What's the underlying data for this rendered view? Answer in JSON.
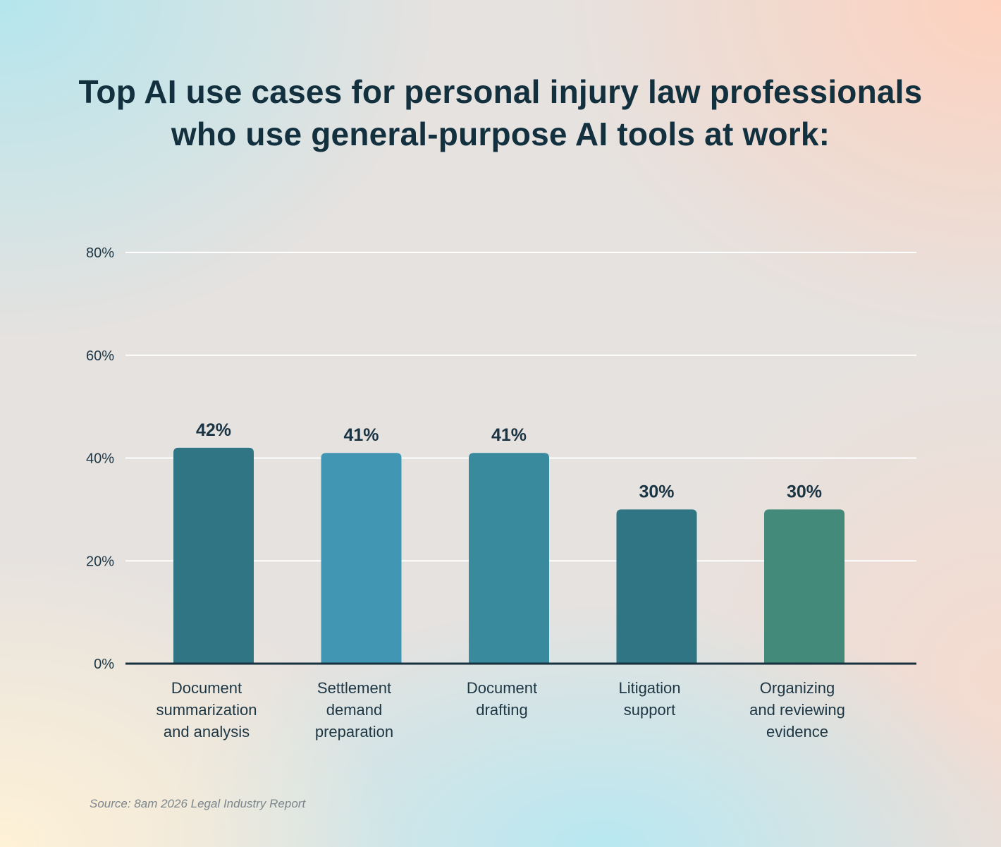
{
  "title_lines": [
    "Top AI use cases for personal injury law professionals",
    "who use general-purpose AI tools at work:"
  ],
  "source": "Source: 8am 2026 Legal Industry Report",
  "chart_data": {
    "type": "bar",
    "title": "Top AI use cases for personal injury law professionals who use general-purpose AI tools at work:",
    "categories": [
      [
        "Document",
        "summarization",
        "and analysis"
      ],
      [
        "Settlement",
        "demand",
        "preparation"
      ],
      [
        "Document",
        "drafting"
      ],
      [
        "Litigation",
        "support"
      ],
      [
        "Organizing",
        "and reviewing",
        "evidence"
      ]
    ],
    "values": [
      42,
      41,
      41,
      30,
      30
    ],
    "value_labels": [
      "42%",
      "41%",
      "41%",
      "30%",
      "30%"
    ],
    "bar_colors": [
      "#2f7584",
      "#4197b3",
      "#3a8a9e",
      "#2f7584",
      "#438a7a"
    ],
    "y_ticks": [
      0,
      20,
      40,
      60,
      80
    ],
    "y_tick_labels": [
      "0%",
      "20%",
      "40%",
      "60%",
      "80%"
    ],
    "ylim": [
      0,
      80
    ],
    "grid": true,
    "xlabel": "",
    "ylabel": ""
  }
}
